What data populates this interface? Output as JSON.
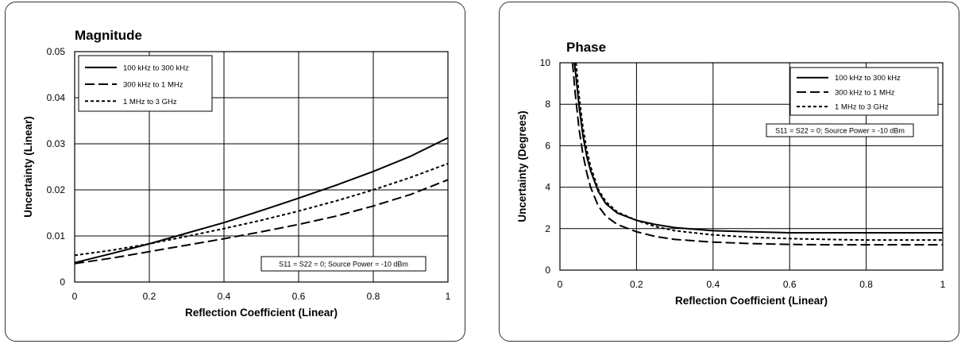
{
  "chart_data": [
    {
      "type": "line",
      "title": "Magnitude",
      "xlabel": "Reflection Coefficient (Linear)",
      "ylabel": "Uncertainty (Linear)",
      "xlim": [
        0,
        1
      ],
      "ylim": [
        0,
        0.05
      ],
      "xticks": [
        0,
        0.2,
        0.4,
        0.6,
        0.8,
        1
      ],
      "xtick_labels": [
        "0",
        "0.2",
        "0.4",
        "0.6",
        "0.8",
        "1"
      ],
      "yticks": [
        0,
        0.01,
        0.02,
        0.03,
        0.04,
        0.05
      ],
      "ytick_labels": [
        "0",
        "0.01",
        "0.02",
        "0.03",
        "0.04",
        "0.05"
      ],
      "grid": true,
      "legend_position": "top-left",
      "annotation": "S11 = S22 = 0; Source Power = -10 dBm",
      "series": [
        {
          "name": "100 kHz to 300 kHz",
          "dash": "solid",
          "x": [
            0,
            0.1,
            0.2,
            0.3,
            0.4,
            0.5,
            0.6,
            0.7,
            0.8,
            0.9,
            1.0
          ],
          "y": [
            0.0042,
            0.0062,
            0.0083,
            0.0106,
            0.0129,
            0.0155,
            0.0182,
            0.021,
            0.024,
            0.0273,
            0.0313
          ]
        },
        {
          "name": "300 kHz to 1 MHz",
          "dash": "long-dash",
          "x": [
            0,
            0.1,
            0.2,
            0.3,
            0.4,
            0.5,
            0.6,
            0.7,
            0.8,
            0.9,
            1.0
          ],
          "y": [
            0.004,
            0.0052,
            0.0066,
            0.008,
            0.0094,
            0.0109,
            0.0125,
            0.0143,
            0.0165,
            0.019,
            0.0222
          ]
        },
        {
          "name": "1 MHz to 3 GHz",
          "dash": "short-dash",
          "x": [
            0,
            0.1,
            0.2,
            0.3,
            0.4,
            0.5,
            0.6,
            0.7,
            0.8,
            0.9,
            1.0
          ],
          "y": [
            0.0058,
            0.0069,
            0.0083,
            0.0099,
            0.0116,
            0.0134,
            0.0154,
            0.0176,
            0.02,
            0.0227,
            0.0257
          ]
        }
      ]
    },
    {
      "type": "line",
      "title": "Phase",
      "xlabel": "Reflection Coefficient (Linear)",
      "ylabel": "Uncertainty (Degrees)",
      "xlim": [
        0,
        1
      ],
      "ylim": [
        0,
        10
      ],
      "xticks": [
        0,
        0.2,
        0.4,
        0.6,
        0.8,
        1
      ],
      "xtick_labels": [
        "0",
        "0.2",
        "0.4",
        "0.6",
        "0.8",
        "1"
      ],
      "yticks": [
        0,
        2,
        4,
        6,
        8,
        10
      ],
      "ytick_labels": [
        "0",
        "2",
        "4",
        "6",
        "8",
        "10"
      ],
      "grid": true,
      "legend_position": "top-right",
      "annotation": "S11 = S22 = 0; Source Power = -10 dBm",
      "series": [
        {
          "name": "100 kHz to 300 kHz",
          "dash": "solid",
          "x": [
            0.038,
            0.045,
            0.05,
            0.06,
            0.07,
            0.08,
            0.1,
            0.12,
            0.15,
            0.2,
            0.25,
            0.3,
            0.4,
            0.5,
            0.6,
            0.7,
            0.8,
            0.9,
            1.0
          ],
          "y": [
            10.0,
            8.8,
            7.9,
            6.5,
            5.5,
            4.8,
            3.8,
            3.2,
            2.75,
            2.4,
            2.2,
            2.05,
            1.9,
            1.85,
            1.8,
            1.8,
            1.8,
            1.8,
            1.8
          ]
        },
        {
          "name": "300 kHz to 1 MHz",
          "dash": "long-dash",
          "x": [
            0.033,
            0.04,
            0.05,
            0.06,
            0.07,
            0.08,
            0.1,
            0.12,
            0.15,
            0.2,
            0.25,
            0.3,
            0.4,
            0.5,
            0.6,
            0.7,
            0.8,
            0.9,
            1.0
          ],
          "y": [
            10.0,
            8.5,
            6.8,
            5.6,
            4.7,
            4.0,
            3.1,
            2.6,
            2.2,
            1.85,
            1.62,
            1.48,
            1.35,
            1.28,
            1.24,
            1.22,
            1.22,
            1.22,
            1.22
          ]
        },
        {
          "name": "1 MHz to 3 GHz",
          "dash": "short-dash",
          "x": [
            0.042,
            0.05,
            0.06,
            0.07,
            0.08,
            0.1,
            0.12,
            0.15,
            0.2,
            0.25,
            0.3,
            0.4,
            0.5,
            0.6,
            0.7,
            0.8,
            0.9,
            1.0
          ],
          "y": [
            10.0,
            8.4,
            6.9,
            5.8,
            5.0,
            3.9,
            3.3,
            2.8,
            2.4,
            2.1,
            1.9,
            1.7,
            1.58,
            1.52,
            1.48,
            1.45,
            1.45,
            1.45
          ]
        }
      ]
    }
  ]
}
